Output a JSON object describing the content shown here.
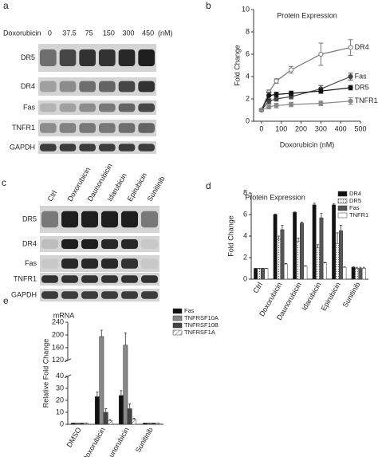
{
  "blot_a": {
    "label": "a",
    "treatment": "Doxorubicin",
    "doses": [
      "0",
      "37.5",
      "75",
      "150",
      "300",
      "450"
    ],
    "unit": "(nM)",
    "rows": [
      "DR5",
      "DR4",
      "Fas",
      "TNFR1",
      "GAPDH"
    ]
  },
  "blot_c": {
    "label": "c",
    "lanes": [
      "Ctrl",
      "Doxorubicin",
      "Daunorubicin",
      "Idarubicin",
      "Epirubicin",
      "Sunitinib"
    ],
    "rows": [
      "DR5",
      "DR4",
      "Fas",
      "TNFR1",
      "GAPDH"
    ]
  },
  "chart_data": [
    {
      "type": "line",
      "panel_label": "b",
      "title": "Protein Expression",
      "x_label": "Doxorubicin (nM)",
      "y_label": "Fold Change",
      "x": [
        0,
        37.5,
        75,
        150,
        300,
        450
      ],
      "xlim": [
        -40,
        500
      ],
      "xticks": [
        0,
        100,
        200,
        300,
        400,
        500
      ],
      "ylim": [
        0,
        10
      ],
      "yticks": [
        0,
        2,
        4,
        6,
        8,
        10
      ],
      "legend": "line-end",
      "series": [
        {
          "name": "DR4",
          "color": "#777",
          "marker_fill": "#fff",
          "values": [
            1,
            2.6,
            3.6,
            4.6,
            6.0,
            6.6
          ],
          "errors": [
            0.1,
            0.2,
            0.2,
            0.3,
            1.0,
            0.7
          ]
        },
        {
          "name": "Fas",
          "color": "#444",
          "marker_fill": "#444",
          "values": [
            1,
            1.8,
            2.0,
            2.2,
            2.9,
            4.0
          ],
          "errors": [
            0.1,
            0.2,
            0.2,
            0.2,
            0.3,
            0.3
          ]
        },
        {
          "name": "DR5",
          "color": "#111",
          "marker_fill": "#111",
          "values": [
            1,
            2.3,
            2.4,
            2.5,
            2.7,
            3.0
          ],
          "errors": [
            0.1,
            0.3,
            0.2,
            0.2,
            0.2,
            0.2
          ]
        },
        {
          "name": "TNFR1",
          "color": "#888",
          "marker_fill": "#888",
          "values": [
            1,
            1.3,
            1.4,
            1.5,
            1.6,
            1.8
          ],
          "errors": [
            0.1,
            0.2,
            0.2,
            0.2,
            0.2,
            0.3
          ]
        }
      ]
    },
    {
      "type": "bar",
      "panel_label": "d",
      "title": "Protein Expression",
      "y_label": "Fold Change",
      "categories": [
        "Ctrl",
        "Doxorubicin",
        "Daunorubicin",
        "Idarubicin",
        "Epirubicin",
        "Sunitinib"
      ],
      "ylim": [
        0,
        8
      ],
      "yticks": [
        0,
        2,
        4,
        6,
        8
      ],
      "legend": "top-right",
      "series": [
        {
          "name": "DR4",
          "color": "#111",
          "values": [
            1,
            6.0,
            6.2,
            6.9,
            6.9,
            1.1
          ],
          "errors": [
            0,
            0.05,
            0.05,
            0.15,
            0.1,
            0.05
          ]
        },
        {
          "name": "DR5",
          "color": "#ddd",
          "fill_pattern": "dots",
          "values": [
            1,
            3.7,
            3.5,
            2.9,
            3.3,
            1.0
          ],
          "errors": [
            0,
            0.3,
            0.3,
            0.3,
            1.0,
            0.1
          ]
        },
        {
          "name": "Fas",
          "color": "#555",
          "values": [
            1,
            4.6,
            5.2,
            5.7,
            4.5,
            1.0
          ],
          "errors": [
            0,
            0.4,
            0.1,
            0.4,
            0.5,
            0.1
          ]
        },
        {
          "name": "TNFR1",
          "color": "#fff",
          "values": [
            1,
            1.4,
            1.2,
            1.5,
            1.1,
            1.0
          ],
          "errors": [
            0,
            0.05,
            0.05,
            0.05,
            0.05,
            0.1
          ]
        }
      ]
    },
    {
      "type": "bar",
      "panel_label": "e",
      "title": "mRNA",
      "y_label": "Relative Fold Change",
      "categories": [
        "DMSO",
        "Doxorubicin",
        "Daunorubicin",
        "Sunitinib"
      ],
      "ylim": [
        0,
        240
      ],
      "ybreak": [
        40,
        120
      ],
      "yticks": [
        0,
        10,
        20,
        30,
        40,
        120,
        160,
        200,
        240
      ],
      "legend": "right",
      "series": [
        {
          "name": "Fas",
          "color": "#111",
          "values": [
            1,
            23,
            24,
            1
          ],
          "errors": [
            0.1,
            4,
            4,
            0.1
          ]
        },
        {
          "name": "TNFRSF10A",
          "color": "#888",
          "values": [
            1,
            195,
            168,
            1
          ],
          "errors": [
            0.1,
            20,
            38,
            0.1
          ]
        },
        {
          "name": "TNFRSF10B",
          "color": "#444",
          "values": [
            1,
            10,
            13,
            1
          ],
          "errors": [
            0.1,
            3,
            4,
            0.1
          ]
        },
        {
          "name": "TNFRSF1A",
          "color": "#fff",
          "fill_pattern": "hatch",
          "values": [
            1,
            3,
            4,
            0.8
          ],
          "errors": [
            0.1,
            1,
            1,
            0.1
          ]
        }
      ]
    }
  ]
}
